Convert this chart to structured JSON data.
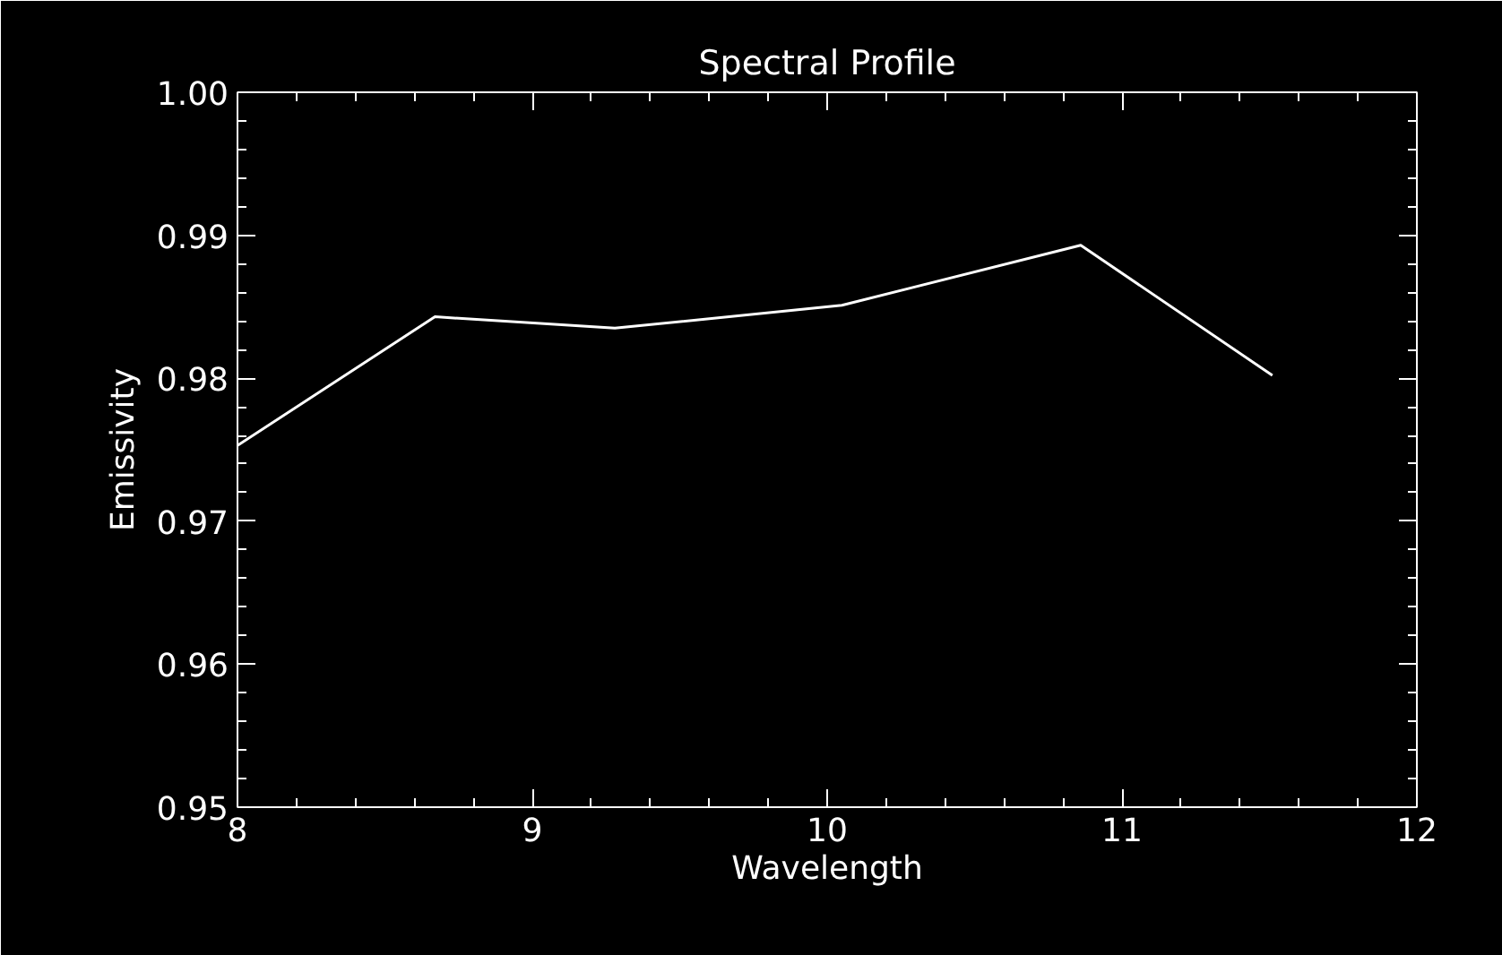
{
  "chart_data": {
    "type": "line",
    "title": "Spectral Profile",
    "xlabel": "Wavelength",
    "ylabel": "Emissivity",
    "x": [
      8.0,
      8.67,
      9.28,
      10.05,
      10.86,
      11.51
    ],
    "values": [
      0.9753,
      0.9843,
      0.9835,
      0.9851,
      0.9893,
      0.9802
    ],
    "color": "#ffffff",
    "xlim": [
      8,
      12
    ],
    "xticks": [
      8,
      9,
      10,
      11,
      12
    ],
    "ylim": [
      0.95,
      1.0
    ],
    "yticks": [
      0.95,
      0.96,
      0.97,
      0.98,
      0.99,
      {
        "value": 1.0,
        "label": "1.00"
      }
    ]
  }
}
